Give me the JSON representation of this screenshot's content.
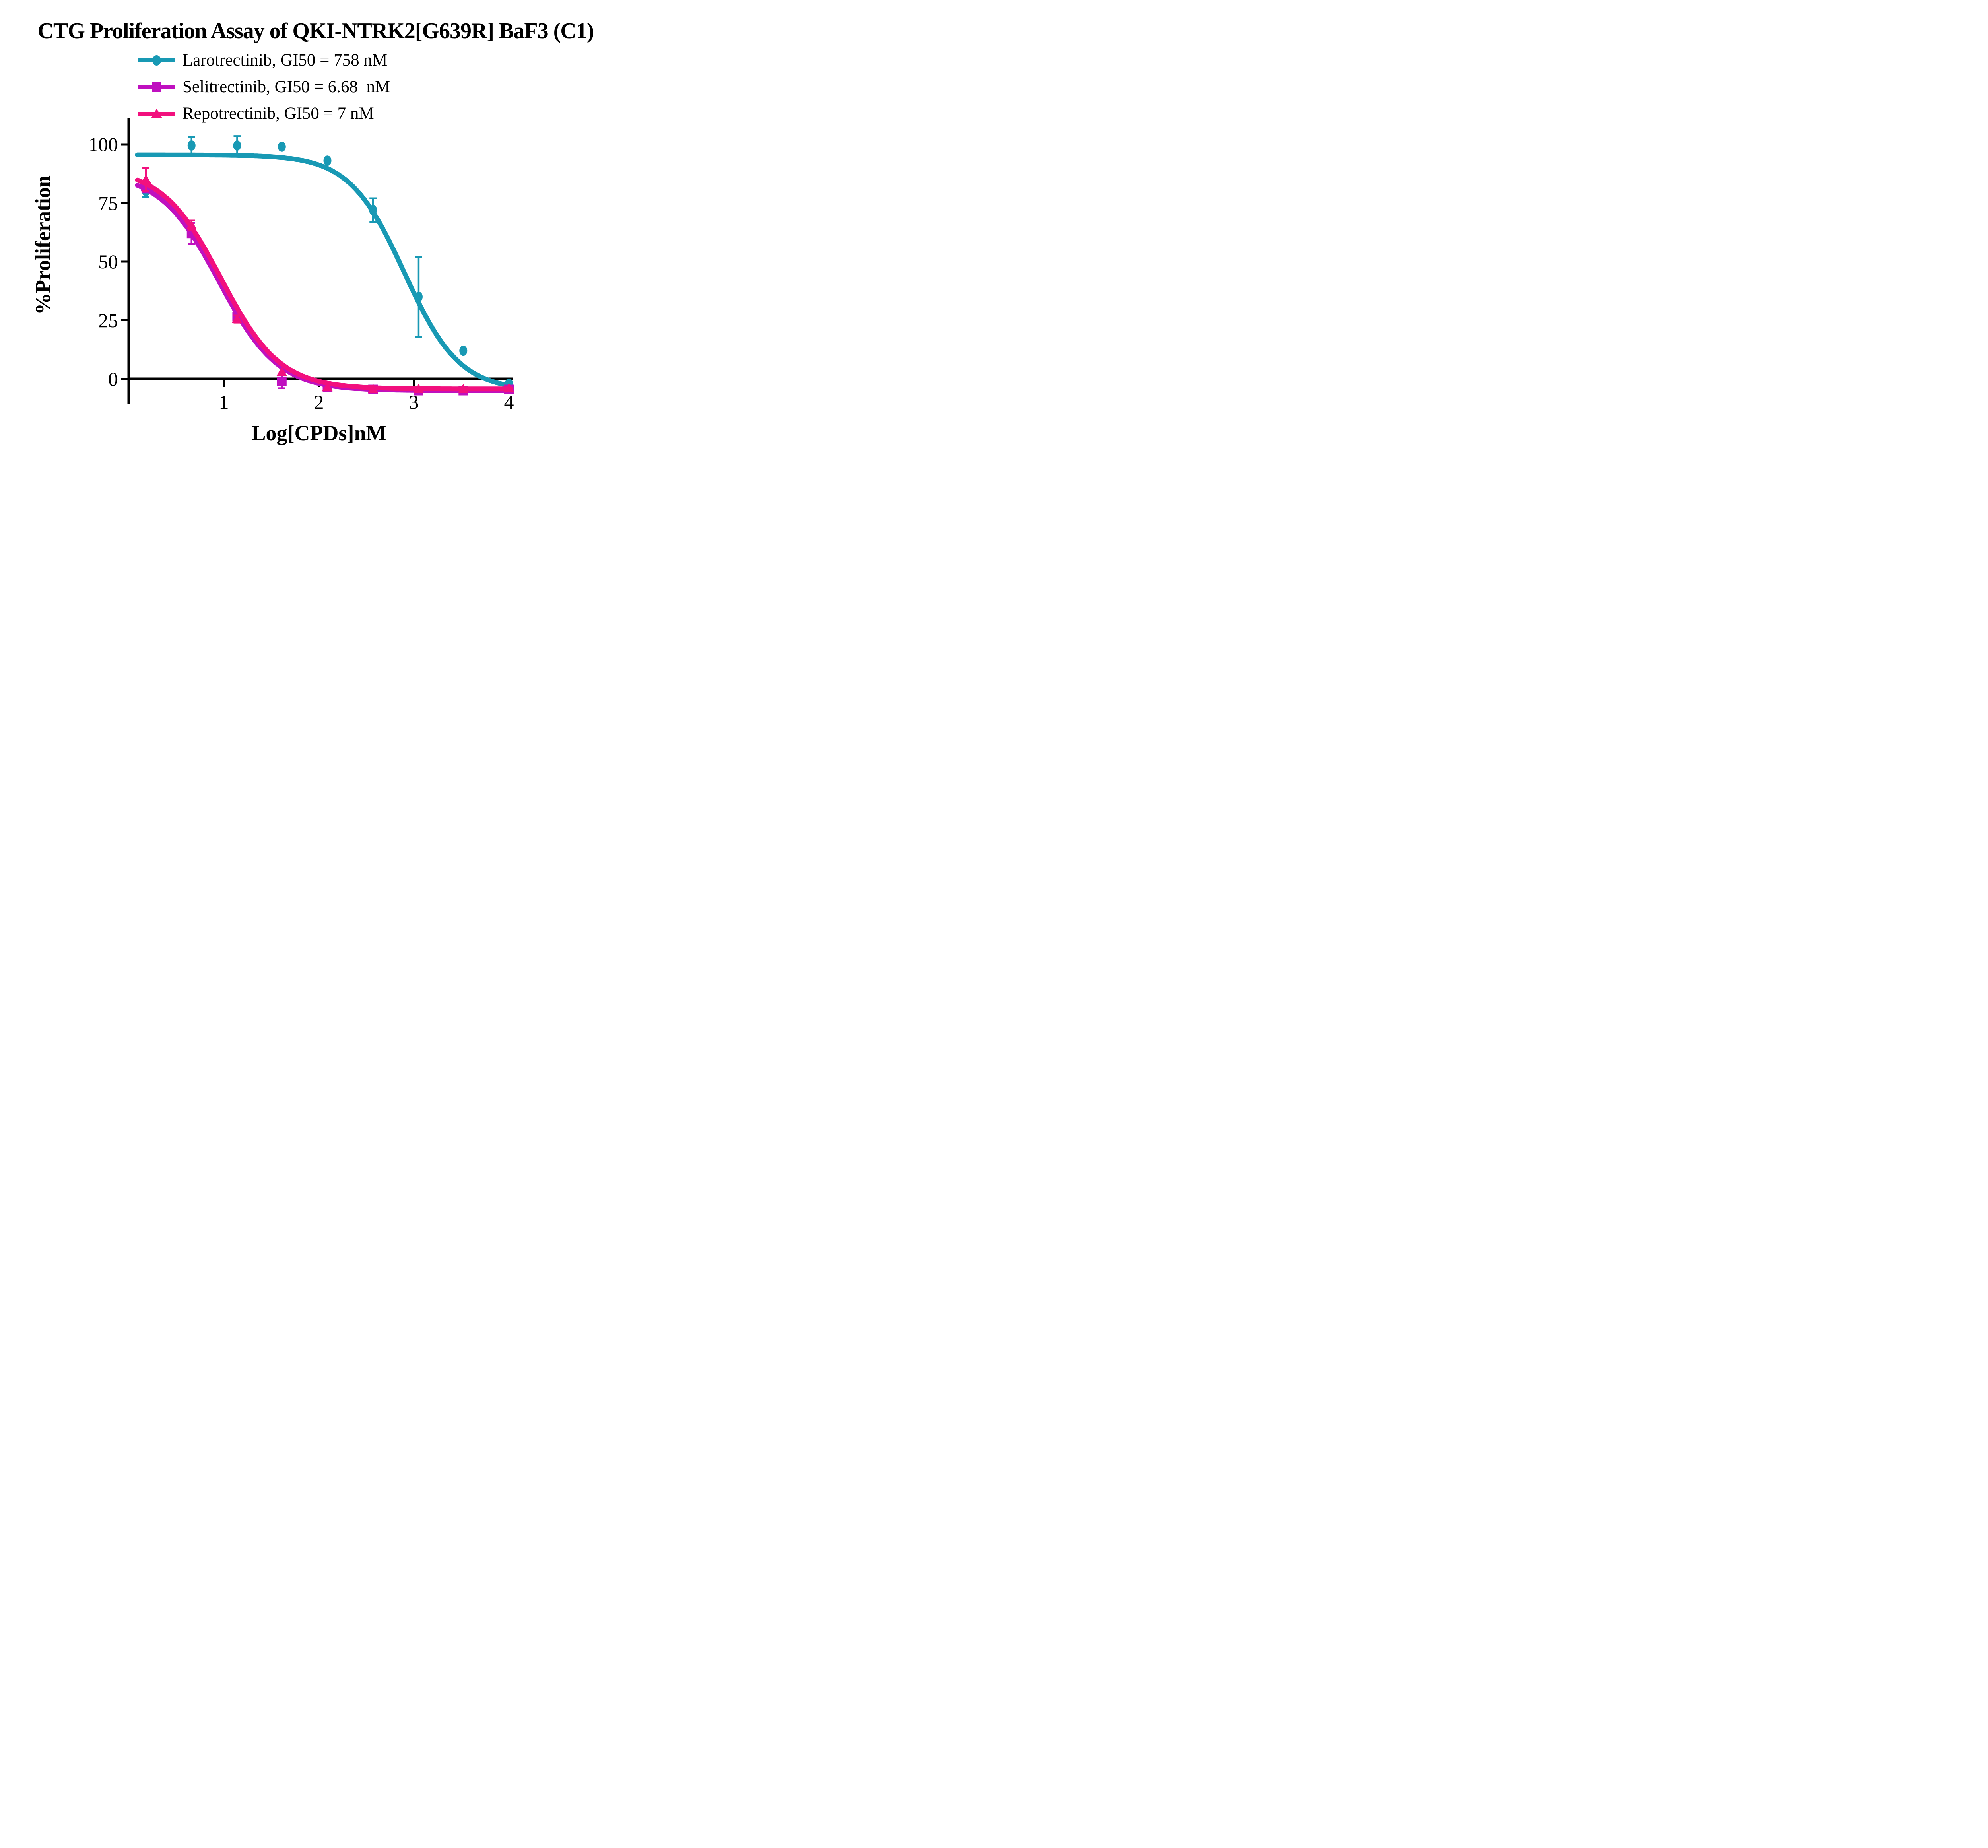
{
  "title": "CTG Proliferation Assay of QKI-NTRK2[G639R] BaF3 (C1)",
  "legend": [
    {
      "label": "Larotrectinib, GI50 = 758 nM",
      "marker": "circle",
      "color": "#1899B4"
    },
    {
      "label": "Selitrectinib, GI50 = 6.68  nM",
      "marker": "square",
      "color": "#BF10BF"
    },
    {
      "label": "Repotrectinib, GI50 = 7 nM",
      "marker": "triangle",
      "color": "#F2107E"
    }
  ],
  "chart_data": {
    "type": "scatter",
    "title": "CTG Proliferation Assay of QKI-NTRK2[G639R] BaF3 (C1)",
    "xlabel": "Log[CPDs]nM",
    "ylabel": "%Proliferation",
    "xlim": [
      0,
      4.07
    ],
    "ylim": [
      -11,
      111
    ],
    "xticks": [
      1,
      2,
      3,
      4
    ],
    "yticks": [
      0,
      25,
      50,
      75,
      100
    ],
    "grid": false,
    "legend_position": "top-left",
    "x": [
      0.18,
      0.66,
      1.14,
      1.61,
      2.09,
      2.57,
      3.05,
      3.52,
      4.0
    ],
    "series": [
      {
        "name": "Larotrectinib",
        "gi50": "758 nM",
        "color": "#1899B4",
        "marker": "circle",
        "values": [
          80,
          99.5,
          99.5,
          99,
          93,
          72,
          35,
          12,
          -2
        ],
        "errors": [
          2.5,
          3.5,
          4,
          0,
          0,
          5,
          17,
          0,
          0
        ],
        "curve_fit": {
          "top": 95.5,
          "bottom": -5,
          "log_gi50": 2.9,
          "hill": 1.5
        }
      },
      {
        "name": "Selitrectinib",
        "gi50": "6.68 nM",
        "color": "#BF10BF",
        "marker": "square",
        "values": [
          82,
          62,
          26.5,
          -1,
          -3.5,
          -4.5,
          -5,
          -5,
          -4.5
        ],
        "errors": [
          2.5,
          4.5,
          1.5,
          3,
          1.2,
          0.8,
          0.8,
          0.8,
          0.8
        ],
        "curve_fit": {
          "top": 88,
          "bottom": -5,
          "log_gi50": 0.95,
          "hill": 1.4
        }
      },
      {
        "name": "Repotrectinib",
        "gi50": "7 nM",
        "color": "#F2107E",
        "marker": "triangle",
        "values": [
          85,
          65.5,
          25.5,
          3,
          -3.5,
          -4.3,
          -4.3,
          -4.3,
          -4
        ],
        "errors": [
          5,
          2,
          1.5,
          0,
          0,
          0,
          0,
          0,
          0
        ],
        "curve_fit": {
          "top": 90,
          "bottom": -4.3,
          "log_gi50": 0.97,
          "hill": 1.4
        }
      }
    ]
  }
}
